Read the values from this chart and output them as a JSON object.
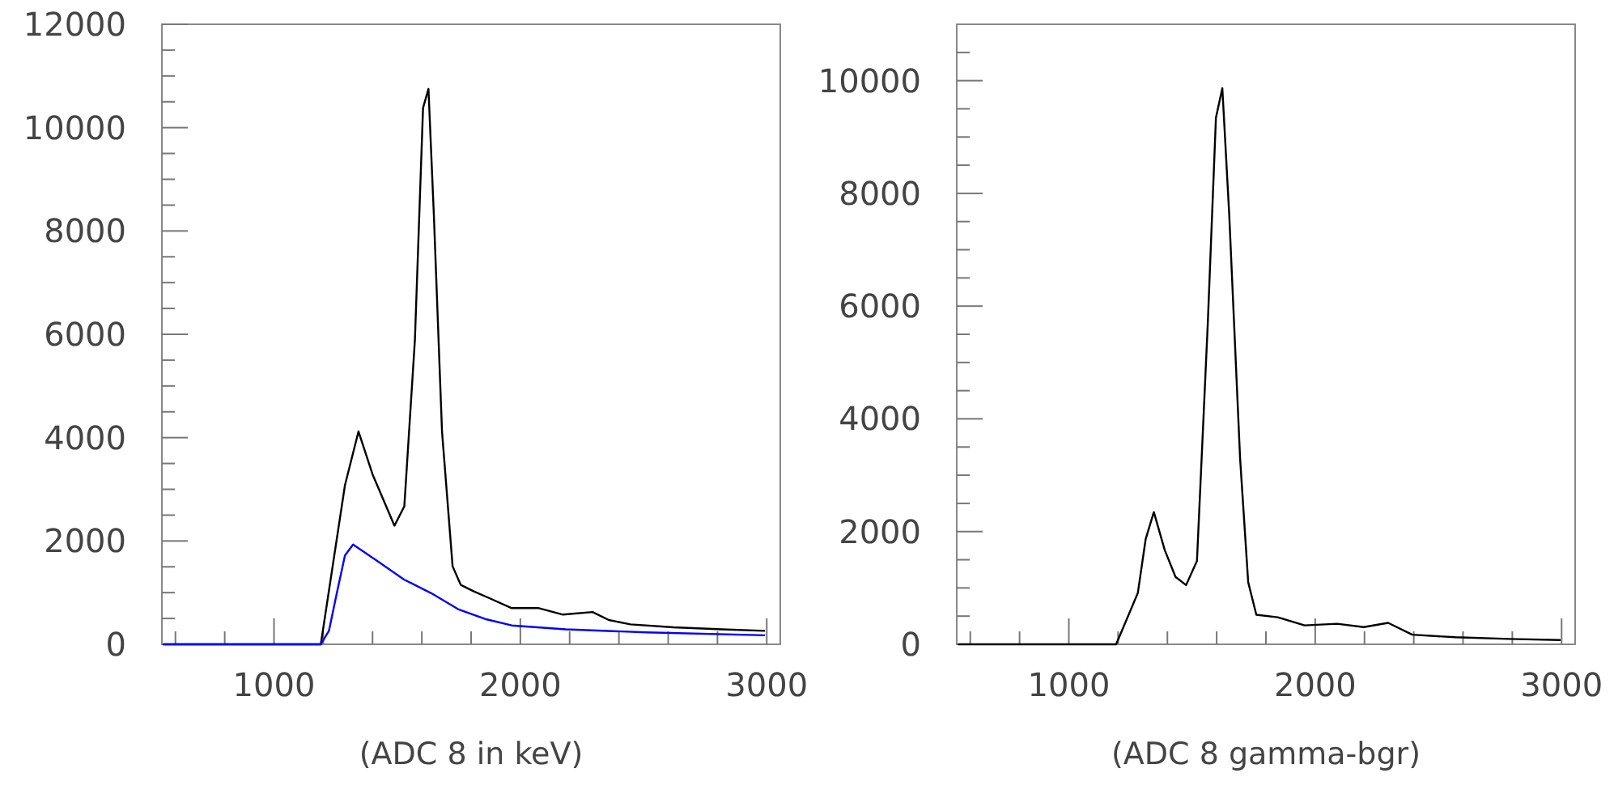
{
  "chart_data": [
    {
      "type": "line",
      "xlabel": "(ADC 8 in keV)",
      "xlim": [
        545,
        3055
      ],
      "ylim": [
        0,
        12000
      ],
      "xticks": [
        {
          "value": 600,
          "label": null
        },
        {
          "value": 800,
          "label": null
        },
        1000,
        {
          "value": 1200,
          "label": null
        },
        {
          "value": 1400,
          "label": null
        },
        {
          "value": 1600,
          "label": null
        },
        {
          "value": 1800,
          "label": null
        },
        2000,
        {
          "value": 2200,
          "label": null
        },
        {
          "value": 2400,
          "label": null
        },
        {
          "value": 2600,
          "label": null
        },
        {
          "value": 2800,
          "label": null
        },
        3000
      ],
      "yticks": [
        0,
        {
          "value": 500,
          "label": null
        },
        {
          "value": 1000,
          "label": null
        },
        {
          "value": 1500,
          "label": null
        },
        2000,
        {
          "value": 2500,
          "label": null
        },
        {
          "value": 3000,
          "label": null
        },
        {
          "value": 3500,
          "label": null
        },
        4000,
        {
          "value": 4500,
          "label": null
        },
        {
          "value": 5000,
          "label": null
        },
        {
          "value": 5500,
          "label": null
        },
        6000,
        {
          "value": 6500,
          "label": null
        },
        {
          "value": 7000,
          "label": null
        },
        {
          "value": 7500,
          "label": null
        },
        8000,
        {
          "value": 8500,
          "label": null
        },
        {
          "value": 9000,
          "label": null
        },
        {
          "value": 9500,
          "label": null
        },
        10000,
        {
          "value": 10500,
          "label": null
        },
        {
          "value": 11000,
          "label": null
        },
        {
          "value": 11500,
          "label": null
        },
        12000
      ],
      "series": [
        {
          "color": "#000000",
          "x": [
            550,
            1190,
            1288,
            1343,
            1400,
            1489,
            1529,
            1572,
            1605,
            1627,
            1649,
            1682,
            1725,
            1758,
            1813,
            1878,
            1965,
            2075,
            2173,
            2293,
            2359,
            2447,
            2621,
            2818,
            2993
          ],
          "values": [
            0,
            0,
            3078,
            4120,
            3290,
            2295,
            2670,
            5895,
            10380,
            10750,
            8300,
            4120,
            1510,
            1150,
            1020,
            885,
            700,
            700,
            575,
            625,
            470,
            385,
            330,
            290,
            260
          ]
        },
        {
          "color": "#0000ff",
          "x": [
            550,
            1190,
            1223,
            1255,
            1288,
            1321,
            1419,
            1529,
            1638,
            1747,
            1857,
            1965,
            2184,
            2512,
            2993
          ],
          "values": [
            0,
            0,
            260,
            990,
            1720,
            1930,
            1615,
            1250,
            990,
            680,
            490,
            365,
            290,
            230,
            175
          ]
        }
      ]
    },
    {
      "type": "line",
      "xlabel": "(ADC 8 gamma-bgr)",
      "xlim": [
        545,
        3055
      ],
      "ylim": [
        0,
        11000
      ],
      "xticks": [
        {
          "value": 600,
          "label": null
        },
        {
          "value": 800,
          "label": null
        },
        1000,
        {
          "value": 1200,
          "label": null
        },
        {
          "value": 1400,
          "label": null
        },
        {
          "value": 1600,
          "label": null
        },
        {
          "value": 1800,
          "label": null
        },
        2000,
        {
          "value": 2200,
          "label": null
        },
        {
          "value": 2400,
          "label": null
        },
        {
          "value": 2600,
          "label": null
        },
        {
          "value": 2800,
          "label": null
        },
        3000
      ],
      "yticks": [
        0,
        {
          "value": 500,
          "label": null
        },
        {
          "value": 1000,
          "label": null
        },
        {
          "value": 1500,
          "label": null
        },
        2000,
        {
          "value": 2500,
          "label": null
        },
        {
          "value": 3000,
          "label": null
        },
        {
          "value": 3500,
          "label": null
        },
        4000,
        {
          "value": 4500,
          "label": null
        },
        {
          "value": 5000,
          "label": null
        },
        {
          "value": 5500,
          "label": null
        },
        6000,
        {
          "value": 6500,
          "label": null
        },
        {
          "value": 7000,
          "label": null
        },
        {
          "value": 7500,
          "label": null
        },
        8000,
        {
          "value": 8500,
          "label": null
        },
        {
          "value": 9000,
          "label": null
        },
        {
          "value": 9500,
          "label": null
        },
        10000,
        {
          "value": 10500,
          "label": null
        }
      ],
      "series": [
        {
          "color": "#000000",
          "x": [
            550,
            1192,
            1280,
            1312,
            1345,
            1389,
            1433,
            1476,
            1520,
            1564,
            1597,
            1623,
            1651,
            1695,
            1728,
            1761,
            1848,
            1957,
            2089,
            2197,
            2296,
            2394,
            2569,
            2788,
            2996
          ],
          "values": [
            0,
            0,
            910,
            1870,
            2345,
            1675,
            1195,
            1050,
            1480,
            5700,
            9340,
            9865,
            7620,
            3305,
            1100,
            525,
            480,
            335,
            365,
            305,
            380,
            170,
            125,
            95,
            75
          ]
        }
      ]
    }
  ]
}
